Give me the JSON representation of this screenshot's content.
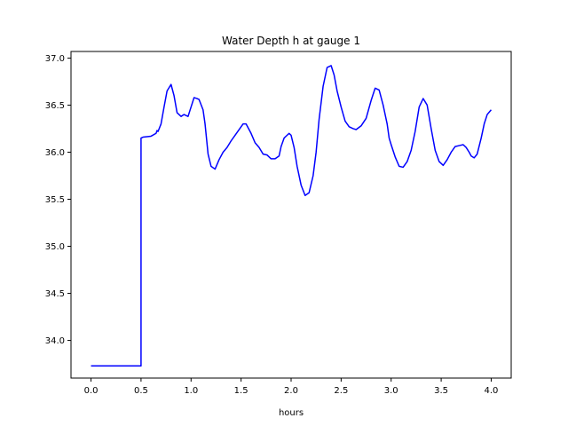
{
  "chart_data": {
    "type": "line",
    "title": "Water Depth h at gauge 1",
    "xlabel": "hours",
    "ylabel": "",
    "xlim": [
      -0.2,
      4.2
    ],
    "ylim": [
      33.6,
      37.07
    ],
    "xticks": [
      0.0,
      0.5,
      1.0,
      1.5,
      2.0,
      2.5,
      3.0,
      3.5,
      4.0
    ],
    "xtick_labels": [
      "0.0",
      "0.5",
      "1.0",
      "1.5",
      "2.0",
      "2.5",
      "3.0",
      "3.5",
      "4.0"
    ],
    "yticks": [
      34.0,
      34.5,
      35.0,
      35.5,
      36.0,
      36.5,
      37.0
    ],
    "ytick_labels": [
      "34.0",
      "34.5",
      "35.0",
      "35.5",
      "36.0",
      "36.5",
      "37.0"
    ],
    "grid": false,
    "series": [
      {
        "color": "#0000ff",
        "x": [
          0.0,
          0.5,
          0.5,
          0.52,
          0.6,
          0.65,
          0.66,
          0.67,
          0.7,
          0.73,
          0.76,
          0.8,
          0.83,
          0.86,
          0.9,
          0.93,
          0.97,
          1.0,
          1.03,
          1.06,
          1.08,
          1.12,
          1.14,
          1.17,
          1.2,
          1.24,
          1.28,
          1.32,
          1.36,
          1.4,
          1.44,
          1.48,
          1.52,
          1.55,
          1.57,
          1.6,
          1.64,
          1.68,
          1.72,
          1.76,
          1.8,
          1.84,
          1.88,
          1.9,
          1.93,
          1.96,
          1.98,
          2.0,
          2.03,
          2.06,
          2.1,
          2.14,
          2.18,
          2.22,
          2.25,
          2.28,
          2.32,
          2.36,
          2.4,
          2.43,
          2.46,
          2.5,
          2.54,
          2.58,
          2.62,
          2.65,
          2.7,
          2.75,
          2.8,
          2.84,
          2.88,
          2.92,
          2.96,
          2.98,
          3.0,
          3.04,
          3.08,
          3.12,
          3.16,
          3.2,
          3.24,
          3.28,
          3.32,
          3.36,
          3.4,
          3.44,
          3.48,
          3.52,
          3.56,
          3.6,
          3.64,
          3.68,
          3.72,
          3.75,
          3.78,
          3.8,
          3.83,
          3.86,
          3.9,
          3.93,
          3.96,
          4.0
        ],
        "y": [
          33.73,
          33.73,
          36.15,
          36.16,
          36.17,
          36.2,
          36.23,
          36.22,
          36.3,
          36.48,
          36.65,
          36.72,
          36.6,
          36.42,
          36.38,
          36.4,
          36.38,
          36.48,
          36.58,
          36.57,
          36.56,
          36.45,
          36.3,
          35.98,
          35.85,
          35.82,
          35.92,
          36.0,
          36.05,
          36.12,
          36.18,
          36.24,
          36.3,
          36.3,
          36.26,
          36.2,
          36.1,
          36.05,
          35.98,
          35.97,
          35.93,
          35.93,
          35.96,
          36.06,
          36.15,
          36.18,
          36.2,
          36.18,
          36.05,
          35.85,
          35.65,
          35.54,
          35.57,
          35.75,
          36.0,
          36.35,
          36.7,
          36.9,
          36.92,
          36.82,
          36.65,
          36.48,
          36.33,
          36.27,
          36.25,
          36.24,
          36.28,
          36.36,
          36.55,
          36.68,
          36.66,
          36.5,
          36.3,
          36.15,
          36.08,
          35.95,
          35.85,
          35.84,
          35.9,
          36.02,
          36.22,
          36.48,
          36.57,
          36.5,
          36.25,
          36.02,
          35.9,
          35.86,
          35.92,
          36.0,
          36.06,
          36.07,
          36.08,
          36.05,
          36.0,
          35.96,
          35.94,
          35.98,
          36.15,
          36.3,
          36.4,
          36.45
        ]
      }
    ]
  }
}
